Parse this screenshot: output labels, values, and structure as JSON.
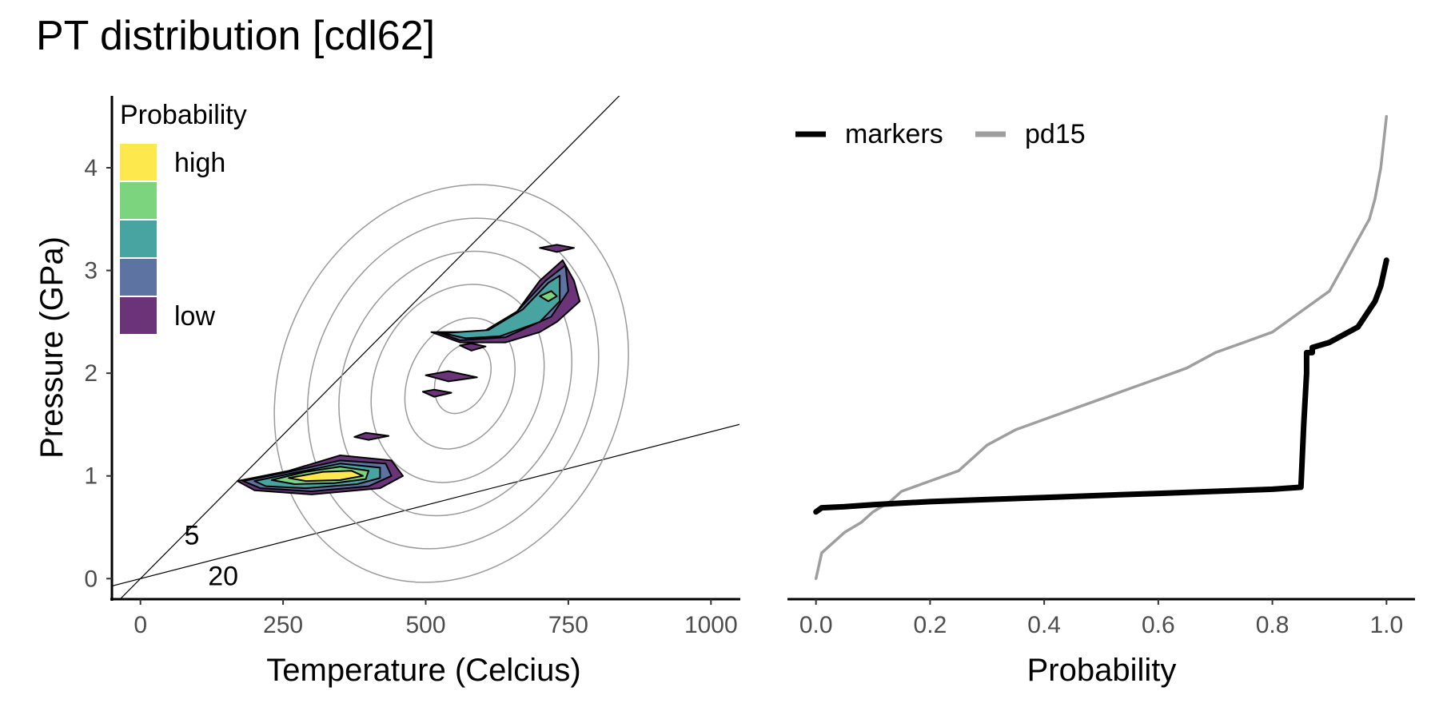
{
  "title": "PT distribution [cdl62]",
  "colors": {
    "axis": "#000000",
    "tick_text": "#4d4d4d",
    "background_contour": "#9a9a9a",
    "markers": "#000000",
    "pd15": "#9e9e9e"
  },
  "chart_data": [
    {
      "type": "contour",
      "xlabel": "Temperature (Celcius)",
      "ylabel": "Pressure (GPa)",
      "xlim": [
        -50,
        1050
      ],
      "ylim": [
        -0.2,
        4.7
      ],
      "xticks": [
        0,
        250,
        500,
        750,
        1000
      ],
      "yticks": [
        0,
        1,
        2,
        3,
        4
      ],
      "grid": false,
      "legend": {
        "title": "Probability",
        "placement": "top-left",
        "levels": [
          {
            "label": "high",
            "color": "#fde84d"
          },
          {
            "label": "",
            "color": "#7cd47f"
          },
          {
            "label": "",
            "color": "#47a4a0"
          },
          {
            "label": "",
            "color": "#5d73a2"
          },
          {
            "label": "low",
            "color": "#6b3479"
          }
        ]
      },
      "gradient_lines": [
        {
          "label": "5",
          "slope_gpa_per_c": 0.0056,
          "intercept": 0.0
        },
        {
          "label": "20",
          "slope_gpa_per_c": 0.00143,
          "intercept": 0.0
        }
      ],
      "background_contours": [
        {
          "cx": 545,
          "cy": 1.9,
          "rx": 360,
          "ry": 1.65,
          "angle": -64
        },
        {
          "cx": 548,
          "cy": 1.9,
          "rx": 300,
          "ry": 1.35,
          "angle": -64
        },
        {
          "cx": 552,
          "cy": 1.9,
          "rx": 240,
          "ry": 1.08,
          "angle": -64
        },
        {
          "cx": 556,
          "cy": 1.9,
          "rx": 180,
          "ry": 0.8,
          "angle": -64
        },
        {
          "cx": 560,
          "cy": 1.9,
          "rx": 120,
          "ry": 0.5,
          "angle": -64
        },
        {
          "cx": 565,
          "cy": 1.95,
          "rx": 65,
          "ry": 0.25,
          "angle": -64
        }
      ],
      "density_regions": [
        {
          "level": 0,
          "points": [
            [
              170,
              0.95
            ],
            [
              260,
              1.05
            ],
            [
              350,
              1.2
            ],
            [
              440,
              1.15
            ],
            [
              460,
              1.0
            ],
            [
              420,
              0.88
            ],
            [
              300,
              0.82
            ],
            [
              200,
              0.86
            ]
          ]
        },
        {
          "level": 1,
          "points": [
            [
              180,
              0.95
            ],
            [
              260,
              1.04
            ],
            [
              350,
              1.15
            ],
            [
              430,
              1.12
            ],
            [
              440,
              1.0
            ],
            [
              400,
              0.9
            ],
            [
              300,
              0.85
            ],
            [
              210,
              0.88
            ]
          ]
        },
        {
          "level": 2,
          "points": [
            [
              200,
              0.95
            ],
            [
              270,
              1.03
            ],
            [
              350,
              1.12
            ],
            [
              420,
              1.08
            ],
            [
              420,
              0.98
            ],
            [
              380,
              0.92
            ],
            [
              290,
              0.88
            ],
            [
              220,
              0.9
            ]
          ]
        },
        {
          "level": 3,
          "points": [
            [
              230,
              0.96
            ],
            [
              290,
              1.04
            ],
            [
              350,
              1.09
            ],
            [
              400,
              1.05
            ],
            [
              395,
              0.97
            ],
            [
              340,
              0.93
            ],
            [
              270,
              0.92
            ]
          ]
        },
        {
          "level": 4,
          "points": [
            [
              260,
              0.98
            ],
            [
              320,
              1.04
            ],
            [
              370,
              1.05
            ],
            [
              390,
              1.0
            ],
            [
              350,
              0.96
            ],
            [
              290,
              0.95
            ]
          ]
        },
        {
          "level": 0,
          "points": [
            [
              510,
              2.4
            ],
            [
              600,
              2.4
            ],
            [
              660,
              2.6
            ],
            [
              700,
              2.9
            ],
            [
              740,
              3.1
            ],
            [
              760,
              2.9
            ],
            [
              770,
              2.7
            ],
            [
              730,
              2.5
            ],
            [
              700,
              2.4
            ],
            [
              640,
              2.3
            ],
            [
              560,
              2.3
            ]
          ]
        },
        {
          "level": 1,
          "points": [
            [
              520,
              2.4
            ],
            [
              600,
              2.4
            ],
            [
              660,
              2.6
            ],
            [
              710,
              2.9
            ],
            [
              745,
              3.05
            ],
            [
              750,
              2.8
            ],
            [
              720,
              2.55
            ],
            [
              640,
              2.35
            ],
            [
              560,
              2.32
            ]
          ]
        },
        {
          "level": 2,
          "points": [
            [
              530,
              2.39
            ],
            [
              610,
              2.42
            ],
            [
              670,
              2.62
            ],
            [
              715,
              2.88
            ],
            [
              735,
              2.95
            ],
            [
              735,
              2.7
            ],
            [
              700,
              2.5
            ],
            [
              630,
              2.36
            ],
            [
              570,
              2.34
            ]
          ]
        },
        {
          "level": 3,
          "points": [
            [
              700,
              2.75
            ],
            [
              720,
              2.8
            ],
            [
              730,
              2.75
            ],
            [
              715,
              2.7
            ]
          ]
        },
        {
          "level": 0,
          "points": [
            [
              700,
              3.22
            ],
            [
              730,
              3.25
            ],
            [
              760,
              3.22
            ],
            [
              730,
              3.18
            ]
          ]
        },
        {
          "level": 0,
          "points": [
            [
              560,
              2.27
            ],
            [
              580,
              2.29
            ],
            [
              605,
              2.26
            ],
            [
              580,
              2.22
            ]
          ]
        },
        {
          "level": 0,
          "points": [
            [
              500,
              1.98
            ],
            [
              540,
              2.02
            ],
            [
              590,
              1.96
            ],
            [
              540,
              1.92
            ]
          ]
        },
        {
          "level": 0,
          "points": [
            [
              495,
              1.82
            ],
            [
              515,
              1.84
            ],
            [
              545,
              1.81
            ],
            [
              515,
              1.77
            ]
          ]
        },
        {
          "level": 0,
          "points": [
            [
              375,
              1.38
            ],
            [
              395,
              1.42
            ],
            [
              435,
              1.39
            ],
            [
              400,
              1.35
            ]
          ]
        }
      ]
    },
    {
      "type": "line",
      "xlabel": "Probability",
      "ylabel": "",
      "xlim": [
        -0.05,
        1.05
      ],
      "ylim": [
        -0.2,
        4.7
      ],
      "xticks": [
        0.0,
        0.2,
        0.4,
        0.6,
        0.8,
        1.0
      ],
      "xtick_labels": [
        "0.0",
        "0.2",
        "0.4",
        "0.6",
        "0.8",
        "1.0"
      ],
      "grid": false,
      "legend_placement": "top-left",
      "series": [
        {
          "name": "markers",
          "color": "#000000",
          "width": 7,
          "x": [
            0.0,
            0.01,
            0.05,
            0.1,
            0.2,
            0.3,
            0.4,
            0.5,
            0.6,
            0.7,
            0.8,
            0.85,
            0.855,
            0.86,
            0.86,
            0.87,
            0.87,
            0.9,
            0.95,
            0.98,
            0.99,
            1.0
          ],
          "y": [
            0.65,
            0.69,
            0.7,
            0.72,
            0.75,
            0.77,
            0.79,
            0.81,
            0.83,
            0.85,
            0.87,
            0.89,
            1.5,
            2.0,
            2.2,
            2.2,
            2.25,
            2.3,
            2.45,
            2.7,
            2.85,
            3.1
          ]
        },
        {
          "name": "pd15",
          "color": "#9e9e9e",
          "width": 3.5,
          "x": [
            0.0,
            0.01,
            0.03,
            0.05,
            0.08,
            0.1,
            0.13,
            0.15,
            0.2,
            0.25,
            0.28,
            0.3,
            0.35,
            0.4,
            0.45,
            0.5,
            0.55,
            0.6,
            0.65,
            0.7,
            0.75,
            0.8,
            0.85,
            0.9,
            0.93,
            0.95,
            0.97,
            0.98,
            0.99,
            1.0
          ],
          "y": [
            0.0,
            0.25,
            0.35,
            0.45,
            0.55,
            0.65,
            0.75,
            0.85,
            0.95,
            1.05,
            1.2,
            1.3,
            1.45,
            1.55,
            1.65,
            1.75,
            1.85,
            1.95,
            2.05,
            2.2,
            2.3,
            2.4,
            2.6,
            2.8,
            3.1,
            3.3,
            3.5,
            3.7,
            4.0,
            4.5
          ]
        }
      ]
    }
  ]
}
